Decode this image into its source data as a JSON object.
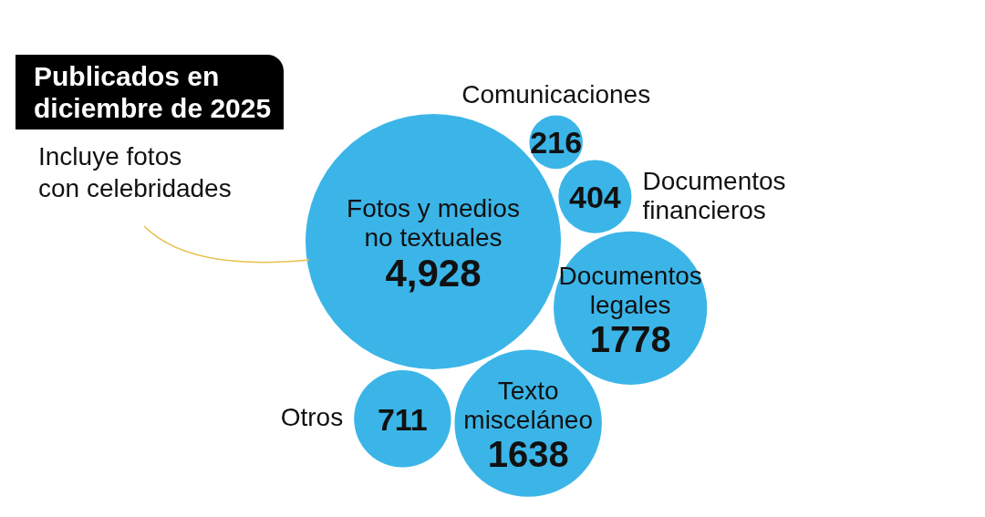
{
  "chart_data": {
    "type": "other",
    "title": "Publicados en diciembre de 2025",
    "categories": [
      "Fotos y medios no textuales",
      "Comunicaciones",
      "Documentos financieros",
      "Documentos legales",
      "Texto misceláneo",
      "Otros"
    ],
    "values": [
      4928,
      216,
      404,
      1778,
      1638,
      711
    ],
    "value_labels": [
      "4,928",
      "216",
      "404",
      "1778",
      "1638",
      "711"
    ],
    "color": "#3bb5e8",
    "annotations": [
      "Incluye fotos con celebridades"
    ]
  }
}
